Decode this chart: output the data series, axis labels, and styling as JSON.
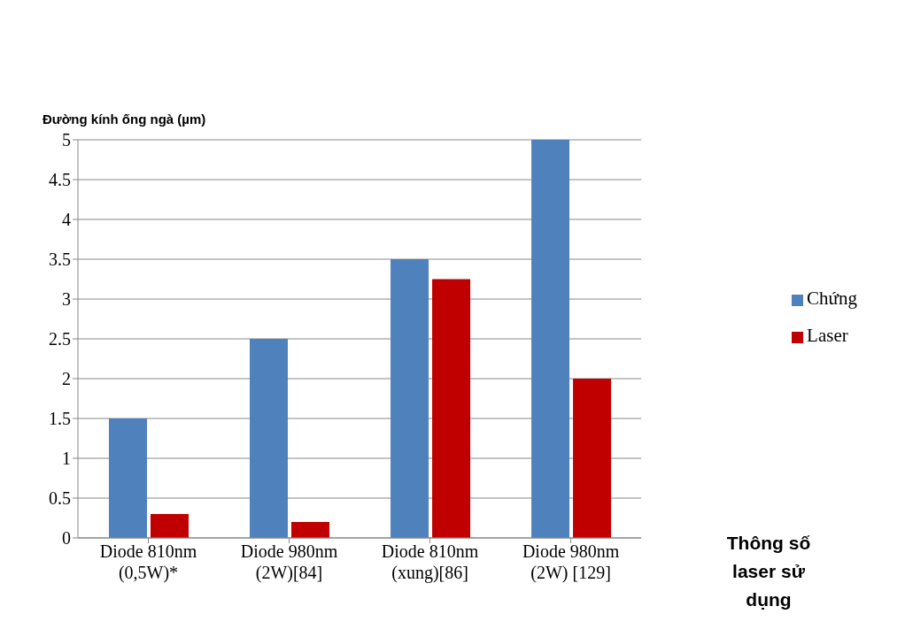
{
  "chart_data": {
    "type": "bar",
    "ylabel": "Đường kính ống ngà (µm)",
    "xlabel": "Thông số laser sử dụng",
    "categories": [
      "Diode 810nm\n(0,5W)*",
      "Diode 980nm\n(2W)[84]",
      "Diode 810nm\n(xung)[86]",
      "Diode 980nm\n(2W) [129]"
    ],
    "series": [
      {
        "name": "Chứng",
        "color": "#4f81bd",
        "values": [
          1.5,
          2.5,
          3.5,
          5
        ]
      },
      {
        "name": "Laser",
        "color": "#c00000",
        "values": [
          0.3,
          0.2,
          3.25,
          2
        ]
      }
    ],
    "ylim": [
      0,
      5
    ],
    "yticks": [
      0,
      0.5,
      1,
      1.5,
      2,
      2.5,
      3,
      3.5,
      4,
      4.5,
      5
    ],
    "grid": "y",
    "legend": "right"
  }
}
